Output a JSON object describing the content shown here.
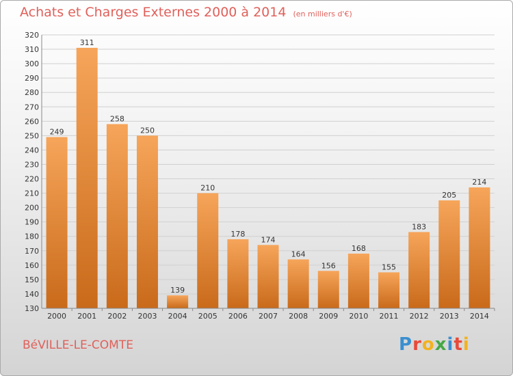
{
  "header": {
    "title": "Achats et Charges Externes 2000 à 2014",
    "unit": "(en milliers d'€)"
  },
  "footer": {
    "commune": "BéVILLE-LE-COMTE",
    "brand": "Proxiti"
  },
  "colors": {
    "bar_light": "#f6a55a",
    "bar_dark": "#c96a1a",
    "title": "#e0605a",
    "grid": "#d0d0d0"
  },
  "chart_data": {
    "type": "bar",
    "title": "Achats et Charges Externes 2000 à 2014",
    "subtitle": "(en milliers d'€)",
    "xlabel": "",
    "ylabel": "",
    "categories": [
      "2000",
      "2001",
      "2002",
      "2003",
      "2004",
      "2005",
      "2006",
      "2007",
      "2008",
      "2009",
      "2010",
      "2011",
      "2012",
      "2013",
      "2014"
    ],
    "values": [
      249,
      311,
      258,
      250,
      139,
      210,
      178,
      174,
      164,
      156,
      168,
      155,
      183,
      205,
      214
    ],
    "ylim": [
      130,
      320
    ],
    "yticks": [
      130,
      140,
      150,
      160,
      170,
      180,
      190,
      200,
      210,
      220,
      230,
      240,
      250,
      260,
      270,
      280,
      290,
      300,
      310,
      320
    ],
    "grid": true,
    "data_labels": true
  }
}
